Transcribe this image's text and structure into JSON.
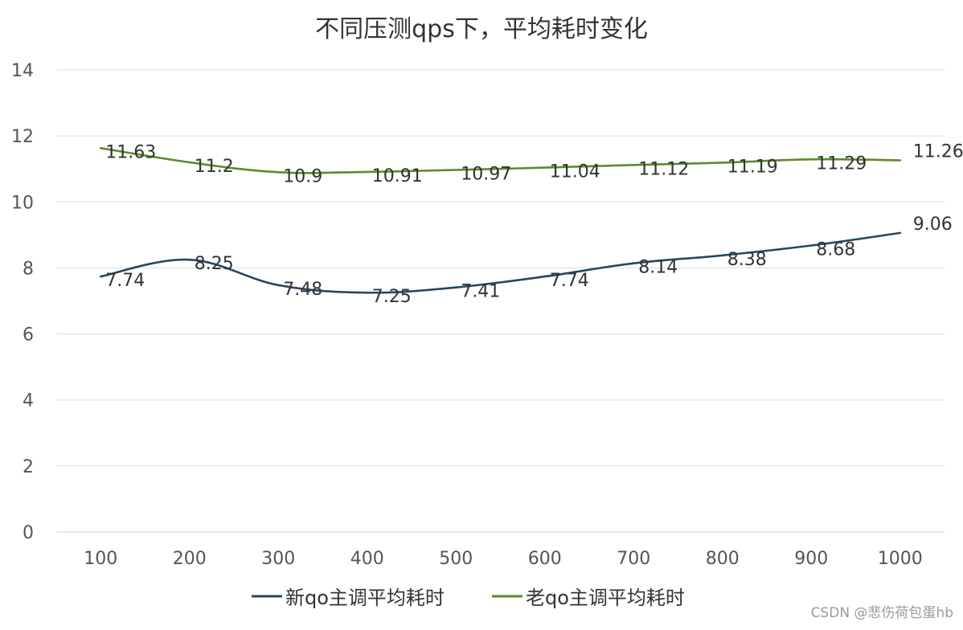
{
  "chart_data": {
    "type": "line",
    "title": "不同压测qps下，平均耗时变化",
    "xlabel": "",
    "ylabel": "",
    "categories": [
      "100",
      "200",
      "300",
      "400",
      "500",
      "600",
      "700",
      "800",
      "900",
      "1000"
    ],
    "ylim": [
      0,
      14
    ],
    "yticks": [
      0,
      2,
      4,
      6,
      8,
      10,
      12,
      14
    ],
    "grid": true,
    "legend_position": "bottom",
    "series": [
      {
        "name": "新qo主调平均耗时",
        "color": "#2a4562",
        "values": [
          7.74,
          8.25,
          7.48,
          7.25,
          7.41,
          7.74,
          8.14,
          8.38,
          8.68,
          9.06
        ]
      },
      {
        "name": "老qo主调平均耗时",
        "color": "#5e8a2a",
        "values": [
          11.63,
          11.2,
          10.9,
          10.91,
          10.97,
          11.04,
          11.12,
          11.19,
          11.29,
          11.26
        ]
      }
    ]
  },
  "watermark": "CSDN @悲伤荷包蛋hb"
}
